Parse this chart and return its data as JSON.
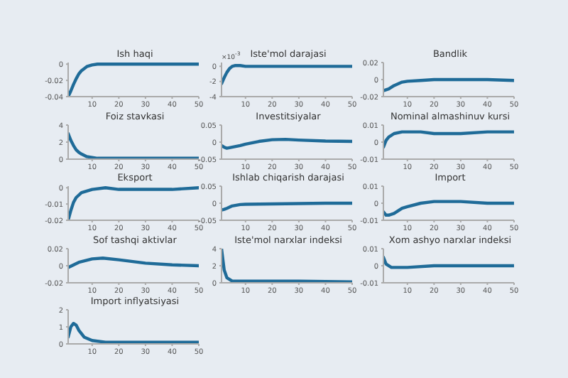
{
  "chart_data": [
    {
      "type": "line",
      "title": "Ish haqi",
      "color": "#1f6b98",
      "x": [
        1,
        2,
        3,
        4,
        5,
        6,
        8,
        10,
        12,
        15,
        20,
        30,
        40,
        50
      ],
      "values": [
        -0.04,
        -0.033,
        -0.025,
        -0.018,
        -0.012,
        -0.008,
        -0.003,
        -0.001,
        0,
        0,
        0,
        0,
        0,
        0
      ],
      "xlim": [
        1,
        50
      ],
      "xticks": [
        10,
        20,
        30,
        40,
        50
      ],
      "ylim": [
        -0.04,
        0.002
      ],
      "yticks": [
        -0.04,
        -0.02,
        0
      ]
    },
    {
      "type": "line",
      "title": "Iste'mol darajasi",
      "annotations": [
        "×10$^{-3}$"
      ],
      "color": "#1f6b98",
      "x": [
        1,
        2,
        3,
        4,
        5,
        6,
        8,
        10,
        15,
        20,
        30,
        40,
        50
      ],
      "values": [
        -2.3,
        -1.5,
        -0.8,
        -0.3,
        0,
        0.1,
        0.1,
        0,
        0,
        0,
        0,
        0,
        0
      ],
      "xlim": [
        1,
        50
      ],
      "xticks": [
        10,
        20,
        30,
        40,
        50
      ],
      "ylim": [
        -4,
        0.5
      ],
      "yticks": [
        -4,
        -2,
        0
      ]
    },
    {
      "type": "line",
      "title": "Bandlik",
      "color": "#1f6b98",
      "x": [
        1,
        3,
        5,
        8,
        10,
        15,
        20,
        30,
        40,
        50
      ],
      "values": [
        -0.013,
        -0.011,
        -0.007,
        -0.003,
        -0.002,
        -0.001,
        0,
        0,
        0,
        -0.001
      ],
      "xlim": [
        1,
        50
      ],
      "xticks": [
        10,
        20,
        30,
        40,
        50
      ],
      "ylim": [
        -0.02,
        0.02
      ],
      "yticks": [
        -0.02,
        0,
        0.02
      ]
    },
    {
      "type": "line",
      "title": "Foiz stavkasi",
      "color": "#1f6b98",
      "x": [
        1,
        2,
        3,
        4,
        5,
        6,
        8,
        10,
        12,
        15,
        20,
        30,
        40,
        50
      ],
      "values": [
        3,
        2.2,
        1.6,
        1.1,
        0.8,
        0.6,
        0.3,
        0.2,
        0.1,
        0.1,
        0.1,
        0.1,
        0.1,
        0.1
      ],
      "xlim": [
        1,
        50
      ],
      "xticks": [
        10,
        20,
        30,
        40,
        50
      ],
      "ylim": [
        0,
        4
      ],
      "yticks": [
        0,
        2,
        4
      ]
    },
    {
      "type": "line",
      "title": "Investitsiyalar",
      "color": "#1f6b98",
      "x": [
        1,
        2,
        3,
        5,
        8,
        10,
        15,
        20,
        25,
        30,
        40,
        50
      ],
      "values": [
        -0.01,
        -0.015,
        -0.018,
        -0.015,
        -0.01,
        -0.006,
        0.002,
        0.007,
        0.008,
        0.006,
        0.003,
        0.002
      ],
      "xlim": [
        1,
        50
      ],
      "xticks": [
        10,
        20,
        30,
        40,
        50
      ],
      "ylim": [
        -0.05,
        0.05
      ],
      "yticks": [
        -0.05,
        0,
        0.05
      ]
    },
    {
      "type": "line",
      "title": "Nominal almashinuv kursi",
      "color": "#1f6b98",
      "x": [
        1,
        2,
        3,
        5,
        8,
        10,
        15,
        20,
        30,
        40,
        50
      ],
      "values": [
        -0.003,
        0.001,
        0.003,
        0.005,
        0.006,
        0.006,
        0.006,
        0.005,
        0.005,
        0.006,
        0.006
      ],
      "xlim": [
        1,
        50
      ],
      "xticks": [
        10,
        20,
        30,
        40,
        50
      ],
      "ylim": [
        -0.01,
        0.01
      ],
      "yticks": [
        -0.01,
        0,
        0.01
      ]
    },
    {
      "type": "line",
      "title": "Eksport",
      "color": "#1f6b98",
      "x": [
        1,
        2,
        3,
        4,
        6,
        8,
        10,
        15,
        20,
        30,
        40,
        50
      ],
      "values": [
        -0.02,
        -0.014,
        -0.009,
        -0.006,
        -0.003,
        -0.002,
        -0.001,
        0,
        -0.001,
        -0.001,
        -0.001,
        0
      ],
      "xlim": [
        1,
        50
      ],
      "xticks": [
        10,
        20,
        30,
        40,
        50
      ],
      "ylim": [
        -0.02,
        0.001
      ],
      "yticks": [
        -0.02,
        -0.01,
        0
      ]
    },
    {
      "type": "line",
      "title": "Ishlab chiqarish darajasi",
      "color": "#1f6b98",
      "x": [
        1,
        2,
        3,
        5,
        8,
        10,
        20,
        30,
        40,
        50
      ],
      "values": [
        -0.02,
        -0.018,
        -0.015,
        -0.008,
        -0.004,
        -0.003,
        -0.002,
        -0.001,
        0,
        0
      ],
      "xlim": [
        1,
        50
      ],
      "xticks": [
        10,
        20,
        30,
        40,
        50
      ],
      "ylim": [
        -0.05,
        0.05
      ],
      "yticks": [
        -0.05,
        0,
        0.05
      ]
    },
    {
      "type": "line",
      "title": "Import",
      "color": "#1f6b98",
      "x": [
        1,
        2,
        3,
        5,
        8,
        10,
        15,
        20,
        25,
        30,
        40,
        50
      ],
      "values": [
        -0.005,
        -0.007,
        -0.007,
        -0.006,
        -0.003,
        -0.002,
        0,
        0.001,
        0.001,
        0.001,
        0,
        0
      ],
      "xlim": [
        1,
        50
      ],
      "xticks": [
        10,
        20,
        30,
        40,
        50
      ],
      "ylim": [
        -0.01,
        0.01
      ],
      "yticks": [
        -0.01,
        0,
        0.01
      ]
    },
    {
      "type": "line",
      "title": "Sof tashqi aktivlar",
      "color": "#1f6b98",
      "x": [
        1,
        5,
        10,
        14,
        20,
        30,
        40,
        50
      ],
      "values": [
        -0.002,
        0.004,
        0.008,
        0.009,
        0.007,
        0.003,
        0.001,
        0
      ],
      "xlim": [
        1,
        50
      ],
      "xticks": [
        10,
        20,
        30,
        40,
        50
      ],
      "ylim": [
        -0.02,
        0.02
      ],
      "yticks": [
        -0.02,
        0,
        0.02
      ]
    },
    {
      "type": "line",
      "title": "Iste'mol narxlar indeksi",
      "color": "#1f6b98",
      "x": [
        1,
        2,
        3,
        5,
        8,
        10,
        20,
        30,
        50
      ],
      "values": [
        4,
        1.5,
        0.6,
        0.2,
        0.2,
        0.2,
        0.2,
        0.2,
        0.1
      ],
      "xlim": [
        1,
        50
      ],
      "xticks": [
        10,
        20,
        30,
        40,
        50
      ],
      "ylim": [
        0,
        4
      ],
      "yticks": [
        0,
        2,
        4
      ]
    },
    {
      "type": "line",
      "title": "Xom ashyo narxlar indeksi",
      "color": "#1f6b98",
      "x": [
        1,
        2,
        4,
        6,
        10,
        20,
        30,
        50
      ],
      "values": [
        0.005,
        0.001,
        -0.001,
        -0.001,
        -0.001,
        0,
        0,
        0
      ],
      "xlim": [
        1,
        50
      ],
      "xticks": [
        10,
        20,
        30,
        40,
        50
      ],
      "ylim": [
        -0.01,
        0.01
      ],
      "yticks": [
        -0.01,
        0,
        0.01
      ]
    },
    {
      "type": "line",
      "title": "Import inflyatsiyasi",
      "color": "#1f6b98",
      "x": [
        1,
        2,
        3,
        4,
        5,
        7,
        10,
        15,
        20,
        30,
        50
      ],
      "values": [
        0.4,
        1,
        1.2,
        1.1,
        0.8,
        0.4,
        0.2,
        0.1,
        0.1,
        0.1,
        0.1
      ],
      "xlim": [
        1,
        50
      ],
      "xticks": [
        10,
        20,
        30,
        40,
        50
      ],
      "ylim": [
        0,
        2
      ],
      "yticks": [
        0,
        1,
        2
      ]
    }
  ]
}
